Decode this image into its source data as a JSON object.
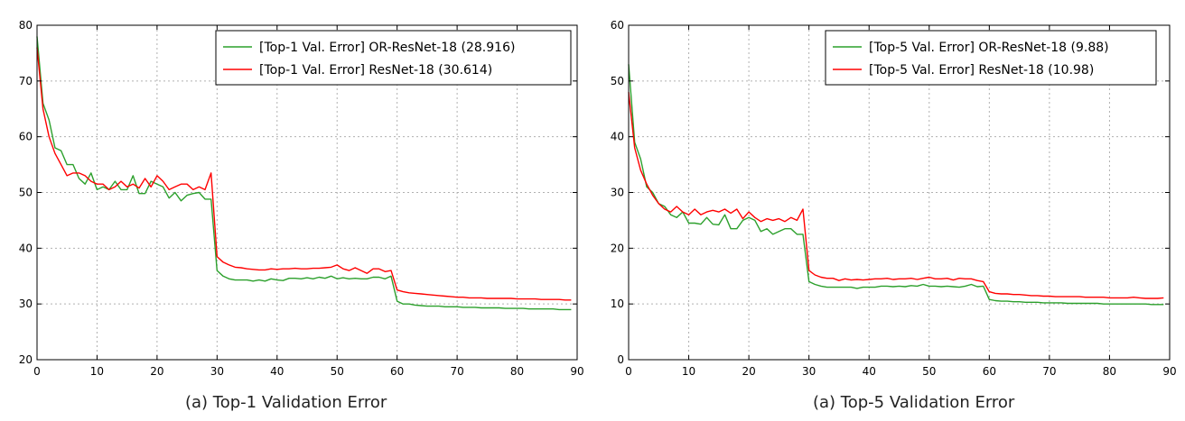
{
  "chart_data": [
    {
      "type": "line",
      "title": "",
      "caption": "(a) Top-1 Validation Error",
      "xlabel": "",
      "ylabel": "",
      "xlim": [
        0,
        90
      ],
      "ylim": [
        20,
        80
      ],
      "xticks": [
        "0",
        "10",
        "20",
        "30",
        "40",
        "50",
        "60",
        "70",
        "80",
        "90"
      ],
      "yticks": [
        "20",
        "30",
        "40",
        "50",
        "60",
        "70",
        "80"
      ],
      "grid": true,
      "legend_position": "top-right",
      "series": [
        {
          "name": "[Top-1 Val. Error] OR-ResNet-18 (28.916)",
          "color": "#2ca02c",
          "x": [
            0,
            1,
            2,
            3,
            4,
            5,
            6,
            7,
            8,
            9,
            10,
            11,
            12,
            13,
            14,
            15,
            16,
            17,
            18,
            19,
            20,
            21,
            22,
            23,
            24,
            25,
            26,
            27,
            28,
            29,
            30,
            31,
            32,
            33,
            34,
            35,
            36,
            37,
            38,
            39,
            40,
            41,
            42,
            43,
            44,
            45,
            46,
            47,
            48,
            49,
            50,
            51,
            52,
            53,
            54,
            55,
            56,
            57,
            58,
            59,
            60,
            61,
            62,
            63,
            64,
            65,
            66,
            67,
            68,
            69,
            70,
            71,
            72,
            73,
            74,
            75,
            76,
            77,
            78,
            79,
            80,
            81,
            82,
            83,
            84,
            85,
            86,
            87,
            88,
            89
          ],
          "y": [
            78,
            66,
            63,
            58,
            57.5,
            55,
            55,
            52.5,
            51.5,
            53.5,
            50.5,
            51,
            50.5,
            52,
            50.5,
            50.5,
            53,
            49.8,
            49.8,
            52,
            51.5,
            51,
            49,
            50,
            48.5,
            49.5,
            49.8,
            50,
            48.8,
            48.8,
            36,
            35,
            34.5,
            34.3,
            34.3,
            34.3,
            34.1,
            34.3,
            34.1,
            34.5,
            34.3,
            34.2,
            34.6,
            34.6,
            34.5,
            34.7,
            34.5,
            34.8,
            34.6,
            35,
            34.5,
            34.7,
            34.5,
            34.6,
            34.5,
            34.5,
            34.8,
            34.8,
            34.5,
            35,
            30.5,
            30,
            30,
            29.8,
            29.7,
            29.6,
            29.6,
            29.6,
            29.5,
            29.5,
            29.5,
            29.4,
            29.4,
            29.4,
            29.3,
            29.3,
            29.3,
            29.3,
            29.2,
            29.2,
            29.2,
            29.2,
            29.1,
            29.1,
            29.1,
            29.1,
            29.1,
            29,
            29,
            29
          ]
        },
        {
          "name": "[Top-1 Val. Error] ResNet-18 (30.614)",
          "color": "#ff0000",
          "x": [
            0,
            1,
            2,
            3,
            4,
            5,
            6,
            7,
            8,
            9,
            10,
            11,
            12,
            13,
            14,
            15,
            16,
            17,
            18,
            19,
            20,
            21,
            22,
            23,
            24,
            25,
            26,
            27,
            28,
            29,
            30,
            31,
            32,
            33,
            34,
            35,
            36,
            37,
            38,
            39,
            40,
            41,
            42,
            43,
            44,
            45,
            46,
            47,
            48,
            49,
            50,
            51,
            52,
            53,
            54,
            55,
            56,
            57,
            58,
            59,
            60,
            61,
            62,
            63,
            64,
            65,
            66,
            67,
            68,
            69,
            70,
            71,
            72,
            73,
            74,
            75,
            76,
            77,
            78,
            79,
            80,
            81,
            82,
            83,
            84,
            85,
            86,
            87,
            88,
            89
          ],
          "y": [
            76,
            65,
            60,
            57,
            55,
            53,
            53.5,
            53.5,
            53,
            52,
            51.5,
            51.5,
            50.5,
            51,
            52,
            51,
            51.5,
            50.8,
            52.5,
            51,
            53,
            52,
            50.5,
            51,
            51.5,
            51.5,
            50.5,
            51,
            50.5,
            53.5,
            38.5,
            37.5,
            37,
            36.6,
            36.5,
            36.3,
            36.2,
            36.1,
            36.1,
            36.3,
            36.2,
            36.3,
            36.3,
            36.4,
            36.3,
            36.3,
            36.4,
            36.4,
            36.5,
            36.6,
            37,
            36.3,
            36,
            36.5,
            36,
            35.5,
            36.3,
            36.3,
            35.8,
            36,
            32.5,
            32.2,
            32,
            31.9,
            31.8,
            31.7,
            31.6,
            31.5,
            31.4,
            31.3,
            31.2,
            31.2,
            31.1,
            31.1,
            31.1,
            31,
            31,
            31,
            31,
            31,
            30.9,
            30.9,
            30.9,
            30.9,
            30.8,
            30.8,
            30.8,
            30.8,
            30.7,
            30.7
          ]
        }
      ]
    },
    {
      "type": "line",
      "title": "",
      "caption": "(a) Top-5 Validation Error",
      "xlabel": "",
      "ylabel": "",
      "xlim": [
        0,
        90
      ],
      "ylim": [
        0,
        60
      ],
      "xticks": [
        "0",
        "10",
        "20",
        "30",
        "40",
        "50",
        "60",
        "70",
        "80",
        "90"
      ],
      "yticks": [
        "0",
        "10",
        "20",
        "30",
        "40",
        "50",
        "60"
      ],
      "grid": true,
      "legend_position": "top-right",
      "series": [
        {
          "name": "[Top-5 Val. Error] OR-ResNet-18 (9.88)",
          "color": "#2ca02c",
          "x": [
            0,
            1,
            2,
            3,
            4,
            5,
            6,
            7,
            8,
            9,
            10,
            11,
            12,
            13,
            14,
            15,
            16,
            17,
            18,
            19,
            20,
            21,
            22,
            23,
            24,
            25,
            26,
            27,
            28,
            29,
            30,
            31,
            32,
            33,
            34,
            35,
            36,
            37,
            38,
            39,
            40,
            41,
            42,
            43,
            44,
            45,
            46,
            47,
            48,
            49,
            50,
            51,
            52,
            53,
            54,
            55,
            56,
            57,
            58,
            59,
            60,
            61,
            62,
            63,
            64,
            65,
            66,
            67,
            68,
            69,
            70,
            71,
            72,
            73,
            74,
            75,
            76,
            77,
            78,
            79,
            80,
            81,
            82,
            83,
            84,
            85,
            86,
            87,
            88,
            89
          ],
          "y": [
            53,
            39,
            36,
            31,
            30,
            28,
            27.5,
            26,
            25.5,
            26.5,
            24.5,
            24.5,
            24.3,
            25.5,
            24.3,
            24.2,
            26,
            23.5,
            23.5,
            25,
            25.5,
            25,
            23,
            23.5,
            22.5,
            23,
            23.5,
            23.5,
            22.5,
            22.5,
            14,
            13.5,
            13.2,
            13,
            13,
            13,
            13,
            13,
            12.8,
            13,
            13,
            13,
            13.2,
            13.2,
            13.1,
            13.2,
            13.1,
            13.3,
            13.2,
            13.5,
            13.2,
            13.2,
            13.1,
            13.2,
            13.1,
            13,
            13.2,
            13.5,
            13.1,
            13.2,
            10.8,
            10.6,
            10.5,
            10.5,
            10.4,
            10.4,
            10.3,
            10.3,
            10.3,
            10.2,
            10.2,
            10.2,
            10.2,
            10.1,
            10.1,
            10.1,
            10.1,
            10.1,
            10.1,
            10,
            10,
            10,
            10,
            10,
            10,
            10,
            10,
            9.9,
            9.9,
            9.9
          ]
        },
        {
          "name": "[Top-5 Val. Error] ResNet-18 (10.98)",
          "color": "#ff0000",
          "x": [
            0,
            1,
            2,
            3,
            4,
            5,
            6,
            7,
            8,
            9,
            10,
            11,
            12,
            13,
            14,
            15,
            16,
            17,
            18,
            19,
            20,
            21,
            22,
            23,
            24,
            25,
            26,
            27,
            28,
            29,
            30,
            31,
            32,
            33,
            34,
            35,
            36,
            37,
            38,
            39,
            40,
            41,
            42,
            43,
            44,
            45,
            46,
            47,
            48,
            49,
            50,
            51,
            52,
            53,
            54,
            55,
            56,
            57,
            58,
            59,
            60,
            61,
            62,
            63,
            64,
            65,
            66,
            67,
            68,
            69,
            70,
            71,
            72,
            73,
            74,
            75,
            76,
            77,
            78,
            79,
            80,
            81,
            82,
            83,
            84,
            85,
            86,
            87,
            88,
            89
          ],
          "y": [
            48,
            38,
            34,
            31.5,
            29.5,
            28,
            27,
            26.5,
            27.5,
            26.5,
            26,
            27,
            26,
            26.5,
            26.8,
            26.5,
            27,
            26.3,
            27,
            25.3,
            26.5,
            25.5,
            24.8,
            25.3,
            25,
            25.3,
            24.8,
            25.5,
            25,
            27,
            16,
            15.2,
            14.8,
            14.6,
            14.6,
            14.2,
            14.5,
            14.3,
            14.4,
            14.3,
            14.4,
            14.5,
            14.5,
            14.6,
            14.4,
            14.5,
            14.5,
            14.6,
            14.4,
            14.6,
            14.8,
            14.5,
            14.5,
            14.6,
            14.3,
            14.6,
            14.5,
            14.5,
            14.2,
            14,
            12.2,
            11.9,
            11.8,
            11.8,
            11.7,
            11.7,
            11.6,
            11.5,
            11.5,
            11.4,
            11.4,
            11.3,
            11.3,
            11.3,
            11.3,
            11.3,
            11.2,
            11.2,
            11.2,
            11.2,
            11.1,
            11.1,
            11.1,
            11.1,
            11.2,
            11.1,
            11,
            11,
            11,
            11.1
          ]
        }
      ]
    }
  ]
}
